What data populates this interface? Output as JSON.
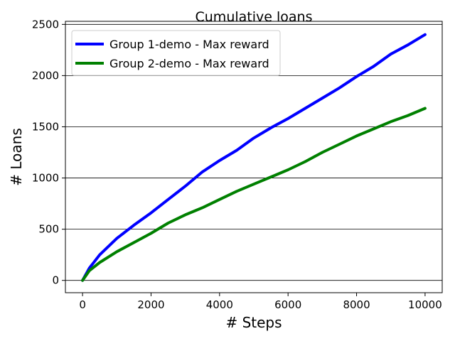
{
  "chart_data": {
    "type": "line",
    "title": "Cumulative loans",
    "xlabel": "# Steps",
    "ylabel": "# Loans",
    "xlim": [
      -500,
      10500
    ],
    "ylim": [
      -120,
      2530
    ],
    "xticks": [
      0,
      2000,
      4000,
      6000,
      8000,
      10000
    ],
    "yticks": [
      0,
      500,
      1000,
      1500,
      2000,
      2500
    ],
    "grid": "horizontal",
    "legend_position": "top-left",
    "series": [
      {
        "name": "Group 1-demo - Max reward",
        "color": "#0000ff",
        "x": [
          0,
          200,
          500,
          1000,
          1500,
          2000,
          2500,
          3000,
          3500,
          4000,
          4500,
          5000,
          5500,
          6000,
          6500,
          7000,
          7500,
          8000,
          8500,
          9000,
          9500,
          10000
        ],
        "y": [
          0,
          120,
          250,
          410,
          540,
          660,
          790,
          920,
          1060,
          1170,
          1270,
          1390,
          1490,
          1580,
          1680,
          1780,
          1880,
          1990,
          2090,
          2210,
          2300,
          2400
        ]
      },
      {
        "name": "Group 2-demo - Max reward",
        "color": "#008000",
        "x": [
          0,
          200,
          500,
          1000,
          1500,
          2000,
          2500,
          3000,
          3500,
          4000,
          4500,
          5000,
          5500,
          6000,
          6500,
          7000,
          7500,
          8000,
          8500,
          9000,
          9500,
          10000
        ],
        "y": [
          0,
          95,
          175,
          280,
          370,
          460,
          560,
          640,
          710,
          790,
          870,
          940,
          1010,
          1080,
          1160,
          1250,
          1330,
          1410,
          1480,
          1550,
          1610,
          1680
        ]
      }
    ]
  }
}
